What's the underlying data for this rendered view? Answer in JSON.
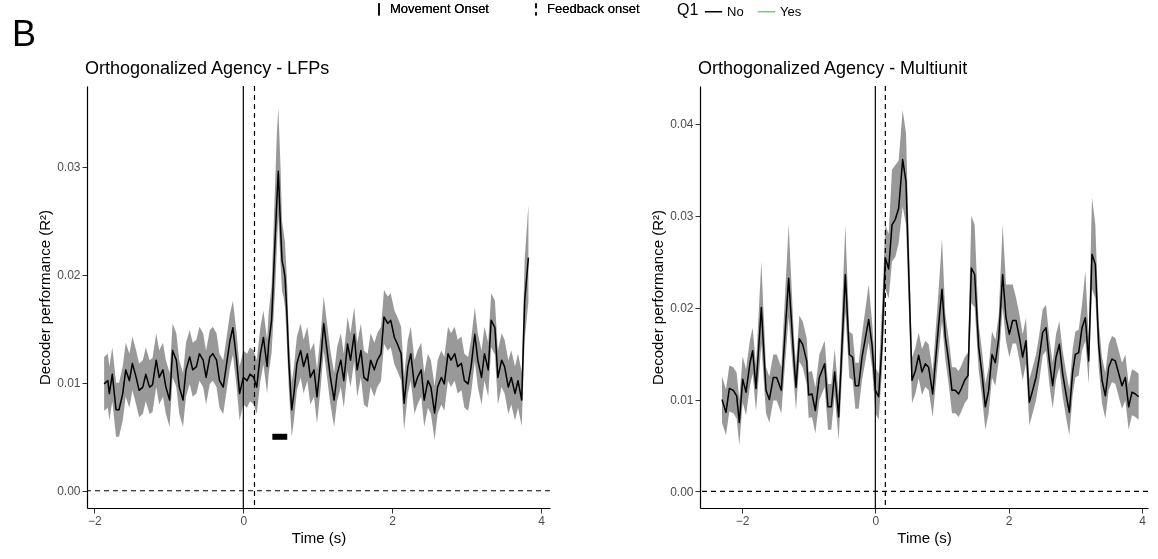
{
  "chart_data": [
    {
      "type": "line",
      "title": "Orthogonalized Agency - LFPs",
      "xlabel": "Time (s)",
      "ylabel": "Decoder performance (R²)",
      "legend_title": "Q1",
      "legend": "top",
      "annotations": [
        "B"
      ],
      "xlim": [
        -2.1,
        4.12
      ],
      "xticks": [
        -2,
        0,
        2,
        4
      ],
      "ylim": [
        -0.0016,
        0.0375
      ],
      "yticks": [
        {
          "value": 0,
          "label": "0.00"
        },
        {
          "value": 0.01,
          "label": "0.01"
        },
        {
          "value": 0.02,
          "label": "0.02"
        },
        {
          "value": 0.03,
          "label": "0.03"
        }
      ],
      "ref_lines": [
        {
          "axis": "x",
          "value": 0,
          "label": "Movement Onset",
          "line_style": "solid"
        },
        {
          "axis": "x",
          "value": 0.15,
          "label": "Feedback onset",
          "line_style": "dashed"
        },
        {
          "axis": "y",
          "value": 0,
          "line_style": "dashed"
        }
      ],
      "series": [
        {
          "name": "No",
          "color": "#000000",
          "x": [
            -1.87,
            -1.82,
            -1.8,
            -1.76,
            -1.71,
            -1.67,
            -1.62,
            -1.58,
            -1.53,
            -1.49,
            -1.44,
            -1.4,
            -1.35,
            -1.31,
            -1.26,
            -1.22,
            -1.17,
            -1.13,
            -1.08,
            -1.04,
            -0.99,
            -0.95,
            -0.9,
            -0.86,
            -0.81,
            -0.77,
            -0.72,
            -0.68,
            -0.63,
            -0.59,
            -0.54,
            -0.5,
            -0.45,
            -0.41,
            -0.36,
            -0.32,
            -0.27,
            -0.23,
            -0.18,
            -0.14,
            -0.09,
            -0.05,
            0.0,
            0.05,
            0.09,
            0.14,
            0.18,
            0.23,
            0.27,
            0.32,
            0.34,
            0.38,
            0.43,
            0.45,
            0.47,
            0.5,
            0.52,
            0.54,
            0.56,
            0.59,
            0.61,
            0.65,
            0.68,
            0.72,
            0.77,
            0.81,
            0.86,
            0.9,
            0.95,
            0.99,
            1.04,
            1.08,
            1.13,
            1.17,
            1.22,
            1.26,
            1.31,
            1.35,
            1.4,
            1.44,
            1.49,
            1.53,
            1.58,
            1.62,
            1.67,
            1.71,
            1.76,
            1.8,
            1.85,
            1.89,
            1.94,
            1.98,
            2.03,
            2.07,
            2.12,
            2.16,
            2.21,
            2.25,
            2.3,
            2.34,
            2.39,
            2.43,
            2.48,
            2.52,
            2.57,
            2.61,
            2.66,
            2.7,
            2.75,
            2.79,
            2.84,
            2.88,
            2.93,
            2.97,
            3.02,
            3.06,
            3.11,
            3.15,
            3.2,
            3.24,
            3.29,
            3.33,
            3.38,
            3.42,
            3.47,
            3.51,
            3.56,
            3.6,
            3.65,
            3.69,
            3.74,
            3.78,
            3.83
          ],
          "values": [
            0.0099,
            0.0102,
            0.009,
            0.0108,
            0.0075,
            0.0075,
            0.009,
            0.0112,
            0.0102,
            0.0118,
            0.0105,
            0.0093,
            0.0096,
            0.0108,
            0.0096,
            0.0098,
            0.0121,
            0.0105,
            0.0112,
            0.0096,
            0.0084,
            0.013,
            0.0121,
            0.0096,
            0.0084,
            0.0112,
            0.0124,
            0.0112,
            0.0115,
            0.0127,
            0.0121,
            0.0105,
            0.0124,
            0.0127,
            0.0121,
            0.0102,
            0.0096,
            0.0115,
            0.0139,
            0.0151,
            0.0121,
            0.009,
            0.0105,
            0.0102,
            0.0108,
            0.0105,
            0.0096,
            0.0127,
            0.0142,
            0.0115,
            0.0136,
            0.0158,
            0.0237,
            0.0268,
            0.0296,
            0.0244,
            0.0213,
            0.0207,
            0.0198,
            0.0158,
            0.0121,
            0.0075,
            0.009,
            0.0118,
            0.013,
            0.0115,
            0.0127,
            0.0105,
            0.0112,
            0.0087,
            0.0121,
            0.0155,
            0.0127,
            0.0105,
            0.0084,
            0.0108,
            0.0121,
            0.0102,
            0.0136,
            0.0121,
            0.0145,
            0.0112,
            0.013,
            0.0105,
            0.0102,
            0.0121,
            0.0112,
            0.0121,
            0.0127,
            0.0161,
            0.0155,
            0.0158,
            0.0142,
            0.0136,
            0.0127,
            0.0081,
            0.0115,
            0.0127,
            0.0096,
            0.0105,
            0.0112,
            0.0084,
            0.0102,
            0.0096,
            0.0072,
            0.0096,
            0.0105,
            0.0099,
            0.0127,
            0.0121,
            0.0127,
            0.0115,
            0.0118,
            0.0102,
            0.0099,
            0.0115,
            0.0145,
            0.0121,
            0.0105,
            0.0127,
            0.0112,
            0.0158,
            0.0151,
            0.0105,
            0.0121,
            0.0115,
            0.0096,
            0.0105,
            0.009,
            0.0102,
            0.0084,
            0.0176,
            0.0216
          ],
          "lower": [
            0.0074,
            0.0077,
            0.0065,
            0.0083,
            0.005,
            0.005,
            0.0065,
            0.0087,
            0.0077,
            0.0093,
            0.008,
            0.0068,
            0.0071,
            0.0083,
            0.0071,
            0.0073,
            0.0096,
            0.008,
            0.0087,
            0.0071,
            0.0059,
            0.0105,
            0.0096,
            0.0071,
            0.0059,
            0.0087,
            0.0099,
            0.0087,
            0.009,
            0.0102,
            0.0096,
            0.008,
            0.0099,
            0.0102,
            0.0096,
            0.0077,
            0.0071,
            0.009,
            0.0114,
            0.0126,
            0.0096,
            0.0065,
            0.008,
            0.0077,
            0.0083,
            0.008,
            0.0071,
            0.0102,
            0.0117,
            0.009,
            0.0108,
            0.0128,
            0.019,
            0.0225,
            0.0255,
            0.021,
            0.0185,
            0.018,
            0.017,
            0.013,
            0.0096,
            0.005,
            0.0065,
            0.0093,
            0.0105,
            0.009,
            0.0102,
            0.008,
            0.0087,
            0.0062,
            0.0096,
            0.013,
            0.0102,
            0.008,
            0.0059,
            0.0083,
            0.0096,
            0.0077,
            0.0111,
            0.0096,
            0.012,
            0.0087,
            0.0105,
            0.008,
            0.0077,
            0.0096,
            0.0087,
            0.0096,
            0.0102,
            0.0136,
            0.013,
            0.0133,
            0.0117,
            0.0111,
            0.0102,
            0.0056,
            0.009,
            0.0102,
            0.0071,
            0.008,
            0.0087,
            0.0059,
            0.0077,
            0.0071,
            0.0047,
            0.0071,
            0.008,
            0.0074,
            0.0102,
            0.0096,
            0.0102,
            0.009,
            0.0093,
            0.0077,
            0.0074,
            0.009,
            0.012,
            0.0096,
            0.008,
            0.0102,
            0.0087,
            0.0133,
            0.0126,
            0.008,
            0.0096,
            0.009,
            0.0071,
            0.008,
            0.0065,
            0.0077,
            0.006,
            0.014,
            0.0175
          ],
          "upper": [
            0.0124,
            0.0127,
            0.0115,
            0.0133,
            0.01,
            0.01,
            0.0115,
            0.0137,
            0.0127,
            0.0143,
            0.013,
            0.0118,
            0.0121,
            0.0133,
            0.0121,
            0.0123,
            0.0146,
            0.013,
            0.0137,
            0.0121,
            0.0109,
            0.0155,
            0.0146,
            0.0121,
            0.0109,
            0.0137,
            0.0149,
            0.0137,
            0.014,
            0.0152,
            0.0146,
            0.013,
            0.0149,
            0.0152,
            0.0146,
            0.0127,
            0.0121,
            0.014,
            0.0164,
            0.0176,
            0.0146,
            0.0115,
            0.013,
            0.0127,
            0.0133,
            0.013,
            0.0121,
            0.0152,
            0.0167,
            0.014,
            0.0165,
            0.019,
            0.029,
            0.033,
            0.0355,
            0.03,
            0.025,
            0.024,
            0.023,
            0.019,
            0.0146,
            0.01,
            0.0115,
            0.0143,
            0.0155,
            0.014,
            0.0152,
            0.013,
            0.0137,
            0.0112,
            0.0146,
            0.018,
            0.0152,
            0.013,
            0.0109,
            0.0133,
            0.0146,
            0.0127,
            0.0161,
            0.0146,
            0.017,
            0.0137,
            0.0155,
            0.013,
            0.0127,
            0.0146,
            0.0137,
            0.0146,
            0.0152,
            0.0186,
            0.018,
            0.0183,
            0.0167,
            0.0161,
            0.0152,
            0.0106,
            0.014,
            0.0152,
            0.0121,
            0.013,
            0.0137,
            0.0109,
            0.0127,
            0.0121,
            0.0097,
            0.0121,
            0.013,
            0.0124,
            0.0152,
            0.0146,
            0.0152,
            0.014,
            0.0143,
            0.0127,
            0.0124,
            0.014,
            0.017,
            0.0146,
            0.013,
            0.0152,
            0.0137,
            0.0183,
            0.0176,
            0.013,
            0.0146,
            0.014,
            0.0121,
            0.013,
            0.0115,
            0.0127,
            0.011,
            0.0215,
            0.0265
          ]
        },
        {
          "name": "Yes",
          "color": "#7fc97f"
        },
        {
          "color": "#000000",
          "x": [
            0.39,
            0.59
          ],
          "values": [
            0.005,
            0.005
          ]
        }
      ]
    },
    {
      "type": "line",
      "title": "Orthogonalized Agency - Multiunit",
      "xlabel": "Time (s)",
      "ylabel": "Decoder performance (R²)",
      "xlim": [
        -2.63,
        4.09
      ],
      "xticks": [
        -2,
        0,
        2,
        4
      ],
      "ylim": [
        -0.0018,
        0.0441
      ],
      "yticks": [
        {
          "value": 0,
          "label": "0.00"
        },
        {
          "value": 0.01,
          "label": "0.01"
        },
        {
          "value": 0.02,
          "label": "0.02"
        },
        {
          "value": 0.03,
          "label": "0.03"
        },
        {
          "value": 0.04,
          "label": "0.04"
        }
      ],
      "ref_lines": [
        {
          "axis": "x",
          "value": 0,
          "line_style": "solid"
        },
        {
          "axis": "x",
          "value": 0.15,
          "line_style": "dashed"
        },
        {
          "axis": "y",
          "value": 0,
          "line_style": "dashed"
        }
      ],
      "series": [
        {
          "color": "#000000",
          "x": [
            -2.3,
            -2.24,
            -2.19,
            -2.13,
            -2.08,
            -2.04,
            -1.99,
            -1.94,
            -1.88,
            -1.84,
            -1.79,
            -1.71,
            -1.64,
            -1.59,
            -1.53,
            -1.48,
            -1.41,
            -1.3,
            -1.22,
            -1.19,
            -1.14,
            -1.09,
            -1.03,
            -1.0,
            -0.95,
            -0.9,
            -0.84,
            -0.76,
            -0.71,
            -0.66,
            -0.61,
            -0.55,
            -0.45,
            -0.39,
            -0.34,
            -0.3,
            -0.25,
            -0.2,
            -0.1,
            -0.05,
            0.0,
            0.05,
            0.1,
            0.15,
            0.2,
            0.25,
            0.3,
            0.35,
            0.41,
            0.46,
            0.55,
            0.6,
            0.65,
            0.7,
            0.75,
            0.8,
            0.86,
            0.95,
            1.0,
            1.05,
            1.1,
            1.15,
            1.2,
            1.25,
            1.29,
            1.34,
            1.39,
            1.44,
            1.49,
            1.55,
            1.6,
            1.65,
            1.7,
            1.75,
            1.8,
            1.85,
            1.91,
            1.96,
            2.01,
            2.06,
            2.11,
            2.16,
            2.21,
            2.26,
            2.31,
            2.36,
            2.41,
            2.46,
            2.51,
            2.56,
            2.61,
            2.66,
            2.71,
            2.76,
            2.81,
            2.86,
            2.91,
            2.96,
            3.0,
            3.05,
            3.1,
            3.15,
            3.2,
            3.25,
            3.3,
            3.35,
            3.4,
            3.45,
            3.5,
            3.55,
            3.6,
            3.7,
            3.75,
            3.8,
            3.85,
            3.9,
            3.95
          ],
          "values": [
            0.01,
            0.0086,
            0.0112,
            0.011,
            0.0104,
            0.0075,
            0.0122,
            0.0108,
            0.014,
            0.0153,
            0.0112,
            0.02,
            0.011,
            0.01,
            0.0124,
            0.0124,
            0.011,
            0.0232,
            0.0142,
            0.0113,
            0.0166,
            0.016,
            0.0142,
            0.0105,
            0.0106,
            0.0088,
            0.0124,
            0.0139,
            0.0092,
            0.0092,
            0.013,
            0.0081,
            0.0236,
            0.0149,
            0.0146,
            0.0115,
            0.0115,
            0.0146,
            0.0187,
            0.016,
            0.011,
            0.0103,
            0.016,
            0.0254,
            0.0242,
            0.029,
            0.0296,
            0.0308,
            0.0361,
            0.0337,
            0.0121,
            0.0131,
            0.0148,
            0.013,
            0.0139,
            0.0135,
            0.0106,
            0.0182,
            0.022,
            0.0168,
            0.0142,
            0.011,
            0.011,
            0.0106,
            0.0112,
            0.0121,
            0.0126,
            0.0243,
            0.0236,
            0.0157,
            0.0128,
            0.0092,
            0.011,
            0.0149,
            0.014,
            0.0166,
            0.0236,
            0.0189,
            0.0171,
            0.0186,
            0.0186,
            0.0168,
            0.0146,
            0.0164,
            0.0097,
            0.011,
            0.0124,
            0.0146,
            0.0173,
            0.0178,
            0.0142,
            0.0115,
            0.0146,
            0.016,
            0.0128,
            0.0106,
            0.0086,
            0.013,
            0.0149,
            0.0151,
            0.0178,
            0.0189,
            0.0142,
            0.0258,
            0.0247,
            0.016,
            0.0121,
            0.0104,
            0.0135,
            0.0144,
            0.0142,
            0.0115,
            0.0124,
            0.0092,
            0.0108,
            0.0106,
            0.0103
          ],
          "lower": [
            0.0075,
            0.0061,
            0.0087,
            0.0085,
            0.0079,
            0.005,
            0.0097,
            0.0083,
            0.0115,
            0.0128,
            0.0087,
            0.016,
            0.0085,
            0.0075,
            0.0099,
            0.0099,
            0.0085,
            0.019,
            0.0117,
            0.0088,
            0.0141,
            0.0135,
            0.0117,
            0.008,
            0.0081,
            0.0063,
            0.0099,
            0.0114,
            0.0067,
            0.0067,
            0.0105,
            0.0056,
            0.0195,
            0.0124,
            0.0121,
            0.009,
            0.009,
            0.0121,
            0.0162,
            0.0135,
            0.0085,
            0.0078,
            0.013,
            0.022,
            0.021,
            0.025,
            0.0255,
            0.027,
            0.031,
            0.029,
            0.0096,
            0.0106,
            0.0123,
            0.0105,
            0.0114,
            0.011,
            0.0081,
            0.015,
            0.0185,
            0.0143,
            0.0117,
            0.0085,
            0.0085,
            0.0081,
            0.0087,
            0.0096,
            0.0101,
            0.0205,
            0.02,
            0.0132,
            0.0103,
            0.0067,
            0.0085,
            0.0124,
            0.0115,
            0.0141,
            0.02,
            0.0164,
            0.0146,
            0.0161,
            0.0161,
            0.0143,
            0.0121,
            0.0139,
            0.0072,
            0.0085,
            0.0099,
            0.0121,
            0.0148,
            0.0153,
            0.0117,
            0.009,
            0.0121,
            0.0135,
            0.0103,
            0.0081,
            0.0061,
            0.0105,
            0.0124,
            0.0126,
            0.0153,
            0.0164,
            0.0117,
            0.022,
            0.021,
            0.0135,
            0.0096,
            0.0079,
            0.011,
            0.0119,
            0.0117,
            0.009,
            0.0099,
            0.0067,
            0.0083,
            0.0081,
            0.0078
          ],
          "upper": [
            0.0125,
            0.0111,
            0.0137,
            0.0135,
            0.0129,
            0.01,
            0.0147,
            0.0133,
            0.0165,
            0.0178,
            0.0137,
            0.025,
            0.0135,
            0.0125,
            0.0149,
            0.0149,
            0.0135,
            0.029,
            0.0167,
            0.0138,
            0.0191,
            0.0185,
            0.0167,
            0.013,
            0.0131,
            0.0113,
            0.0149,
            0.0164,
            0.0117,
            0.0117,
            0.0155,
            0.0106,
            0.029,
            0.0174,
            0.0171,
            0.014,
            0.014,
            0.0171,
            0.0225,
            0.0185,
            0.0135,
            0.0128,
            0.02,
            0.029,
            0.028,
            0.035,
            0.0355,
            0.036,
            0.0415,
            0.039,
            0.0146,
            0.0156,
            0.0173,
            0.0155,
            0.0164,
            0.016,
            0.0131,
            0.022,
            0.0275,
            0.0193,
            0.0167,
            0.0135,
            0.0135,
            0.0131,
            0.0137,
            0.0146,
            0.0151,
            0.03,
            0.029,
            0.0182,
            0.0153,
            0.0117,
            0.0135,
            0.0174,
            0.0165,
            0.0191,
            0.029,
            0.0225,
            0.0225,
            0.0225,
            0.0211,
            0.0193,
            0.0171,
            0.0189,
            0.0122,
            0.0135,
            0.0149,
            0.0171,
            0.0198,
            0.0203,
            0.0167,
            0.014,
            0.0171,
            0.0185,
            0.0153,
            0.0131,
            0.0111,
            0.0155,
            0.0174,
            0.0176,
            0.0203,
            0.024,
            0.0167,
            0.032,
            0.029,
            0.0185,
            0.0146,
            0.0129,
            0.016,
            0.0169,
            0.0167,
            0.014,
            0.0149,
            0.0117,
            0.0133,
            0.0131,
            0.0128
          ]
        }
      ]
    }
  ]
}
